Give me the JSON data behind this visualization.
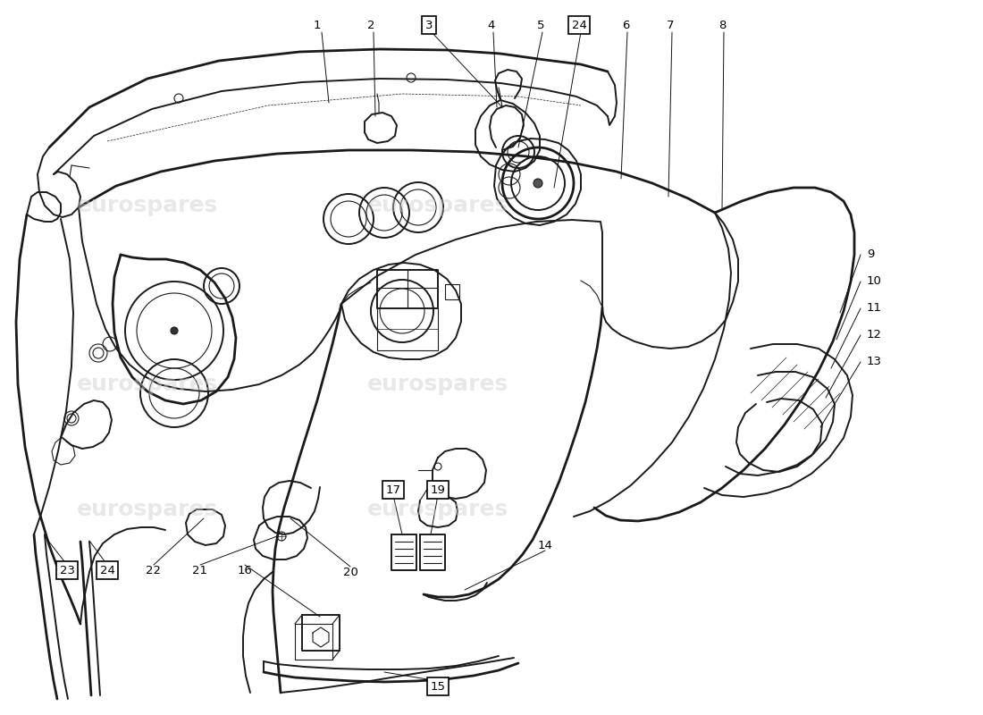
{
  "background_color": "#ffffff",
  "line_color": "#1a1a1a",
  "lw_heavy": 2.0,
  "lw_main": 1.4,
  "lw_thin": 0.8,
  "lw_hair": 0.5,
  "watermark_text": "eurospares",
  "fig_width": 11.0,
  "fig_height": 8.0,
  "dpi": 100,
  "label_fontsize": 9.5
}
